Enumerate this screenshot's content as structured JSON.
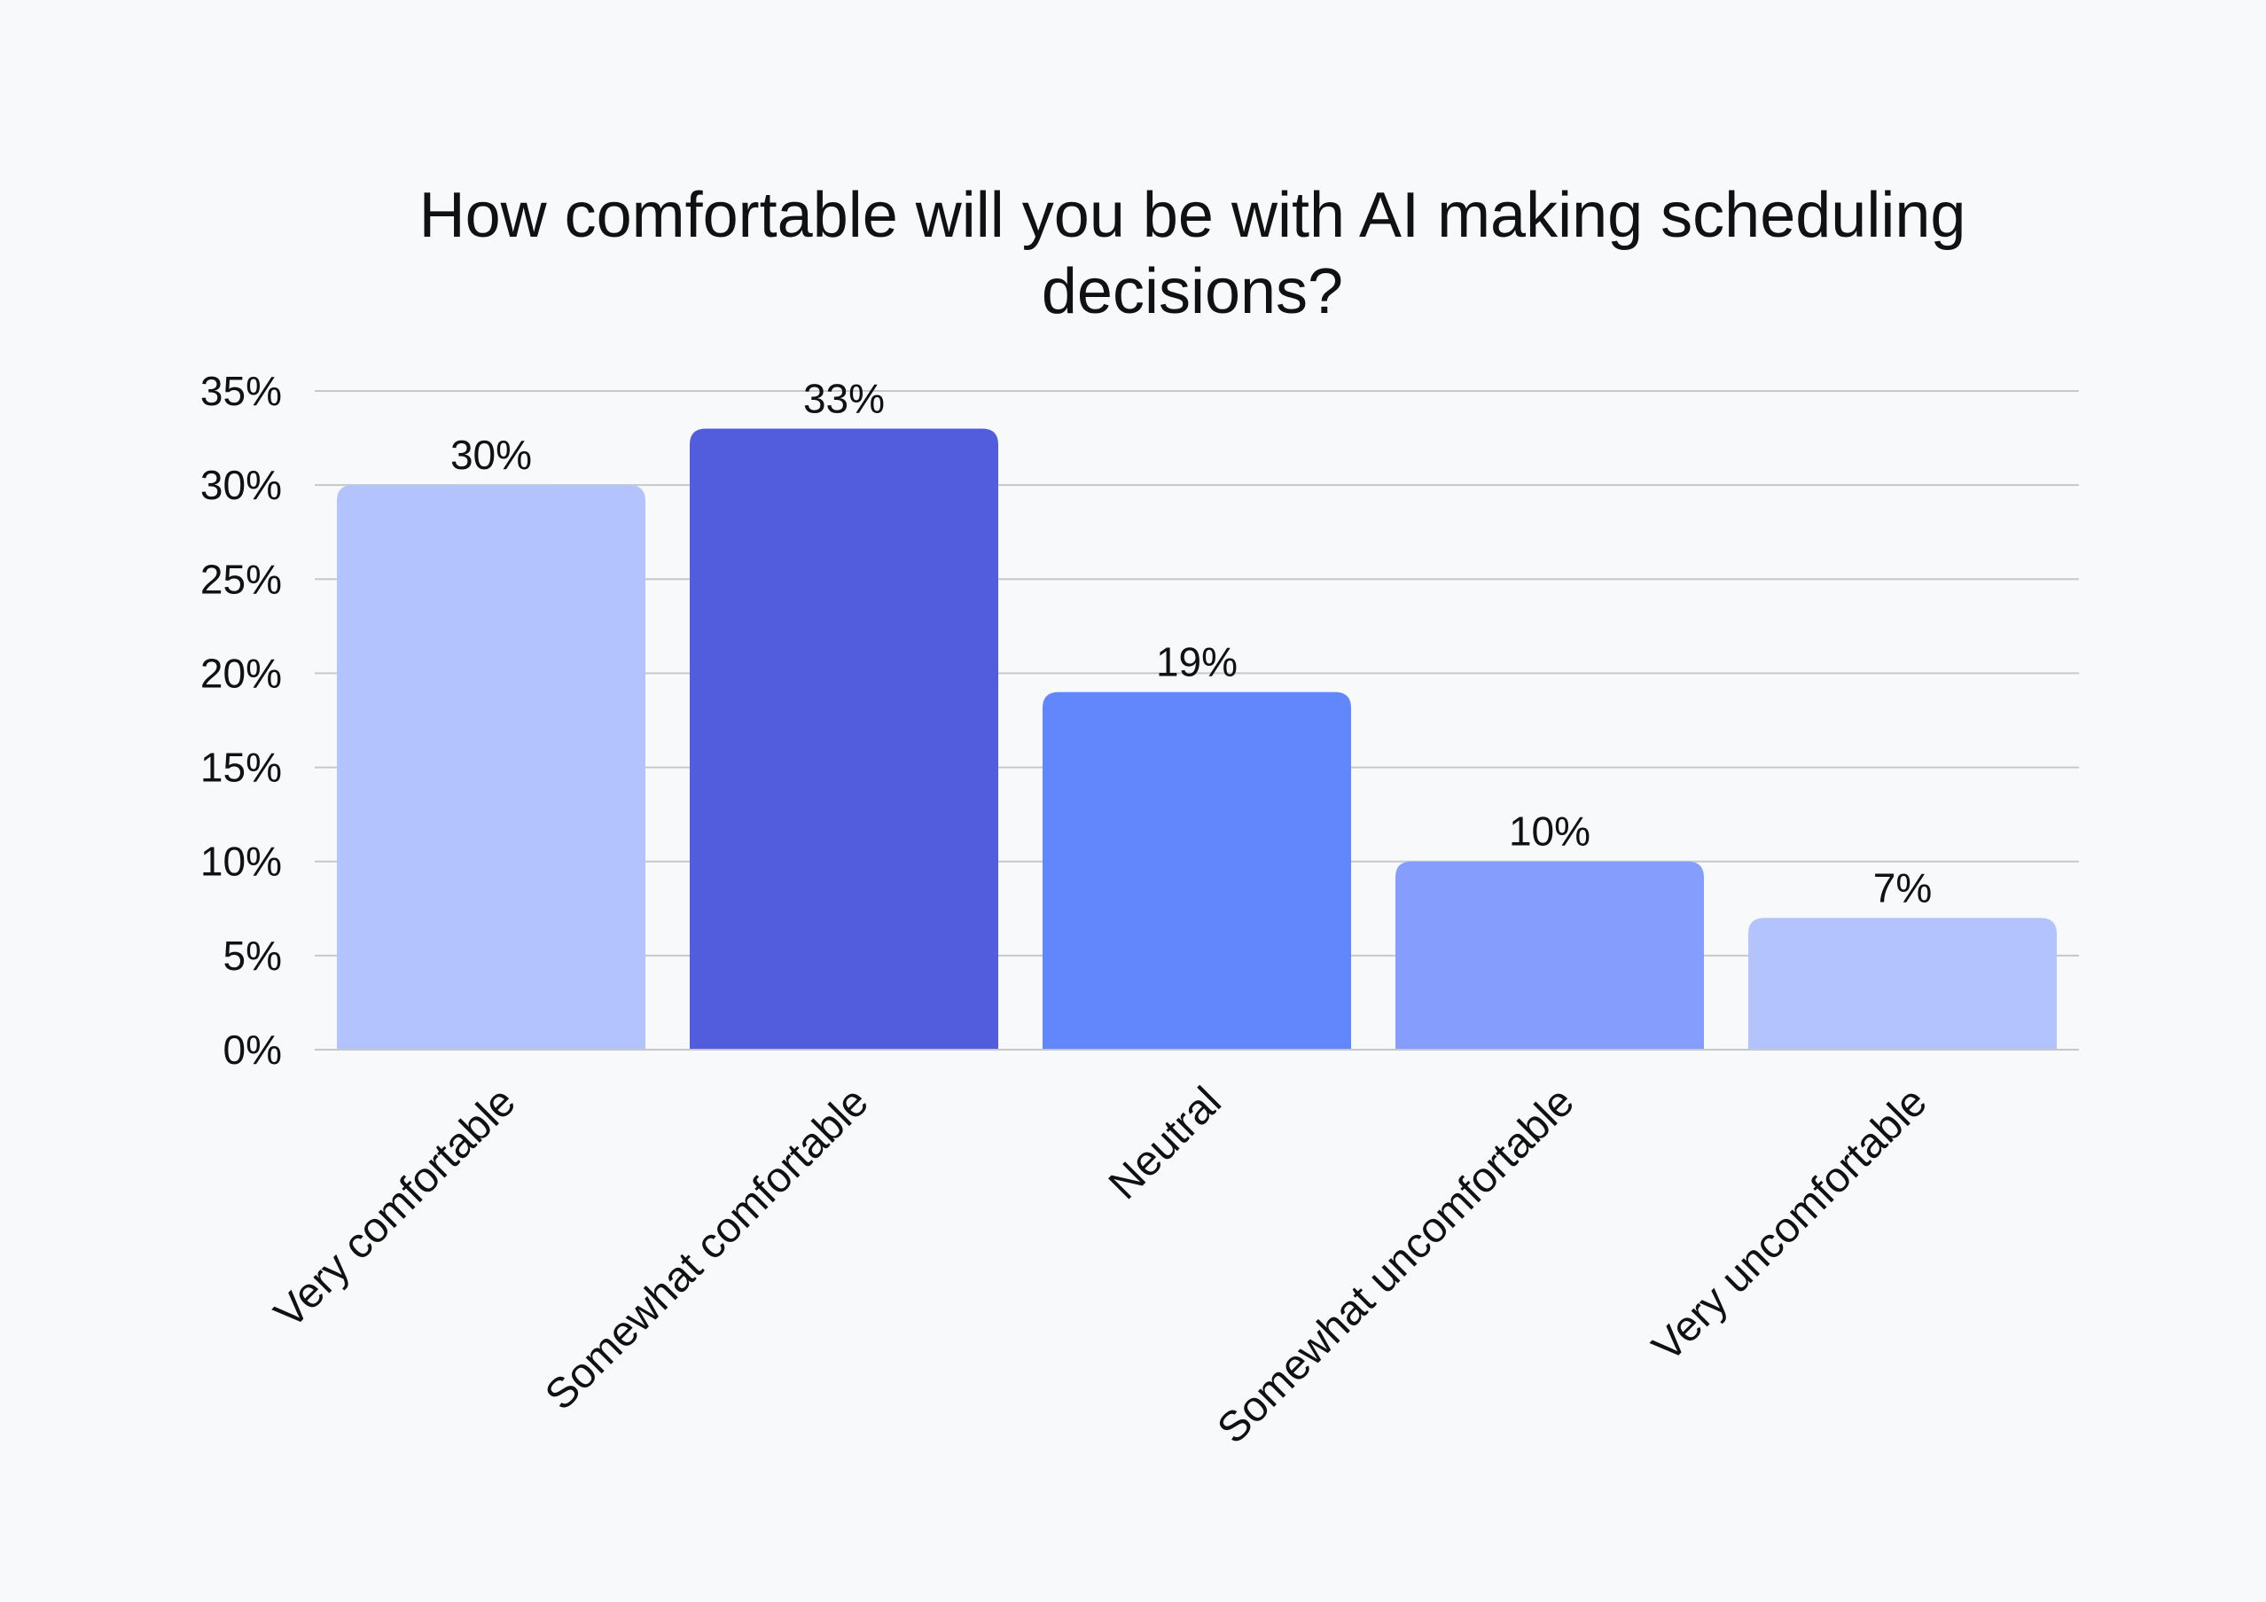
{
  "chart_data": {
    "type": "bar",
    "title": "How comfortable will you be with AI making scheduling decisions?",
    "xlabel": "",
    "ylabel": "",
    "ylim": [
      0,
      35
    ],
    "y_ticks": [
      0,
      5,
      10,
      15,
      20,
      25,
      30,
      35
    ],
    "y_tick_labels": [
      "0%",
      "5%",
      "10%",
      "15%",
      "20%",
      "25%",
      "30%",
      "35%"
    ],
    "categories": [
      "Very comfortable",
      "Somewhat comfortable",
      "Neutral",
      "Somewhat uncomfortable",
      "Very uncomfortable"
    ],
    "values": [
      30,
      33,
      19,
      10,
      7
    ],
    "value_labels": [
      "30%",
      "33%",
      "19%",
      "10%",
      "7%"
    ],
    "bar_colors": [
      "#b3c3fd",
      "#525dde",
      "#6287fd",
      "#859dfd",
      "#b3c3fd"
    ],
    "grid": true,
    "legend": "none"
  }
}
